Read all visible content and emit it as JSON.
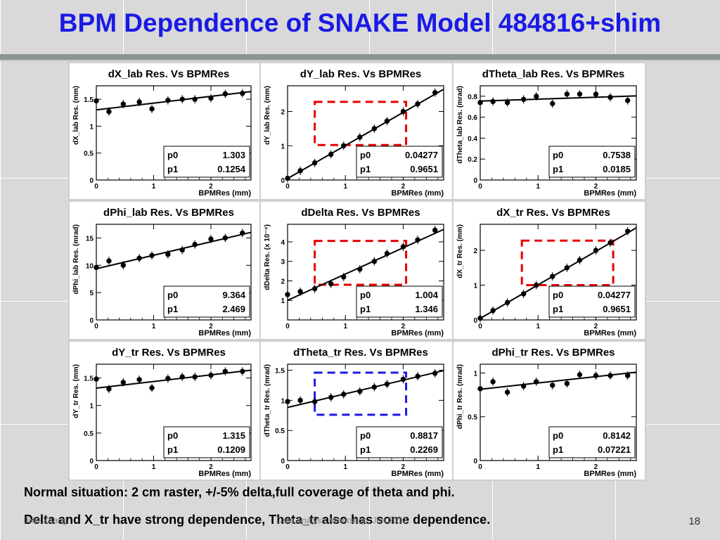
{
  "slide": {
    "title": "BPM Dependence of SNAKE Model 484816+shim",
    "caption": [
      "Normal situation: 2 cm raster, +/-5% delta,full coverage of theta and phi.",
      "Delta and X_tr have strong dependence, Theta_tr also has some dependence."
    ],
    "footer_left": "Jixie Zhang",
    "footer_center": "Data Analysis Workshop, Jan 2012",
    "page_number": "18"
  },
  "colors": {
    "title": "#1a1ae6",
    "red_box": "#e60000",
    "blue_box": "#1a1ae6",
    "fit_line": "#000000",
    "markers": "#000000"
  },
  "chart_data": [
    {
      "type": "scatter",
      "title": "dX_lab Res. Vs BPMRes",
      "xlabel": "BPMRes (mm)",
      "ylabel": "dX_lab Res. (mm)",
      "xlim": [
        0,
        2.7
      ],
      "ylim": [
        0,
        1.75
      ],
      "xticks": [
        0,
        1,
        2
      ],
      "yticks": [
        0,
        0.5,
        1,
        1.5
      ],
      "ytick_labels": [
        "0",
        "0.5",
        "1",
        "1.5"
      ],
      "x": [
        0.0,
        0.22,
        0.47,
        0.75,
        0.97,
        1.25,
        1.5,
        1.72,
        2.0,
        2.25,
        2.55
      ],
      "y": [
        1.47,
        1.27,
        1.41,
        1.45,
        1.32,
        1.48,
        1.5,
        1.5,
        1.52,
        1.6,
        1.61
      ],
      "fit": {
        "p0": 1.303,
        "p1": 0.1254
      },
      "fit_labels": {
        "p0_name": "p0",
        "p0_value": "1.303",
        "p1_name": "p1",
        "p1_value": "0.1254"
      },
      "highlight_box": null
    },
    {
      "type": "scatter",
      "title": "dY_lab Res. Vs BPMRes",
      "xlabel": "BPMRes (mm)",
      "ylabel": "dY_lab Res. (mm)",
      "xlim": [
        0,
        2.7
      ],
      "ylim": [
        0,
        2.75
      ],
      "xticks": [
        0,
        1,
        2
      ],
      "yticks": [
        0,
        1,
        2
      ],
      "ytick_labels": [
        "0",
        "1",
        "2"
      ],
      "x": [
        0.0,
        0.22,
        0.47,
        0.75,
        0.97,
        1.25,
        1.5,
        1.72,
        2.0,
        2.25,
        2.55
      ],
      "y": [
        0.05,
        0.27,
        0.5,
        0.75,
        1.0,
        1.25,
        1.5,
        1.72,
        2.0,
        2.22,
        2.55
      ],
      "fit": {
        "p0": 0.04277,
        "p1": 0.9651
      },
      "fit_labels": {
        "p0_name": "p0",
        "p0_value": "0.04277",
        "p1_name": "p1",
        "p1_value": "0.9651"
      },
      "highlight_box": {
        "color": "red",
        "x": [
          0.47,
          2.05
        ],
        "y": [
          1.02,
          2.28
        ]
      }
    },
    {
      "type": "scatter",
      "title": "dTheta_lab Res. Vs BPMRes",
      "xlabel": "BPMRes (mm)",
      "ylabel": "dTheta_lab Res. (mrad)",
      "xlim": [
        0,
        2.7
      ],
      "ylim": [
        0,
        0.9
      ],
      "xticks": [
        0,
        1,
        2
      ],
      "yticks": [
        0,
        0.2,
        0.4,
        0.6,
        0.8
      ],
      "ytick_labels": [
        "0",
        "0.2",
        "0.4",
        "0.6",
        "0.8"
      ],
      "x": [
        0.0,
        0.22,
        0.47,
        0.75,
        0.97,
        1.25,
        1.5,
        1.72,
        2.0,
        2.25,
        2.55
      ],
      "y": [
        0.74,
        0.75,
        0.74,
        0.77,
        0.8,
        0.73,
        0.82,
        0.82,
        0.82,
        0.79,
        0.76
      ],
      "fit": {
        "p0": 0.7538,
        "p1": 0.0185
      },
      "fit_labels": {
        "p0_name": "p0",
        "p0_value": "0.7538",
        "p1_name": "p1",
        "p1_value": "0.0185"
      },
      "highlight_box": null
    },
    {
      "type": "scatter",
      "title": "dPhi_lab Res. Vs BPMRes",
      "xlabel": "BPMRes (mm)",
      "ylabel": "dPhi_lab Res. (mrad)",
      "xlim": [
        0,
        2.7
      ],
      "ylim": [
        0,
        17.5
      ],
      "xticks": [
        0,
        1,
        2
      ],
      "yticks": [
        0,
        5,
        10,
        15
      ],
      "ytick_labels": [
        "0",
        "5",
        "10",
        "15"
      ],
      "x": [
        0.0,
        0.22,
        0.47,
        0.75,
        0.97,
        1.25,
        1.5,
        1.72,
        2.0,
        2.25,
        2.55
      ],
      "y": [
        9.6,
        10.8,
        10.0,
        11.3,
        11.8,
        12.0,
        12.8,
        13.8,
        14.8,
        15.0,
        15.9
      ],
      "fit": {
        "p0": 9.364,
        "p1": 2.469
      },
      "fit_labels": {
        "p0_name": "p0",
        "p0_value": "9.364",
        "p1_name": "p1",
        "p1_value": "2.469"
      },
      "highlight_box": null
    },
    {
      "type": "scatter",
      "title": "dDelta Res. Vs BPMRes",
      "xlabel": "BPMRes (mm)",
      "ylabel": "dDelta Res. (x 10⁻⁴)",
      "xlim": [
        0,
        2.7
      ],
      "ylim": [
        0,
        4.9
      ],
      "xticks": [
        0,
        1,
        2
      ],
      "yticks": [
        1,
        2,
        3,
        4
      ],
      "ytick_labels": [
        "1",
        "2",
        "3",
        "4"
      ],
      "x": [
        0.0,
        0.22,
        0.47,
        0.75,
        0.97,
        1.25,
        1.5,
        1.72,
        2.0,
        2.25,
        2.55
      ],
      "y": [
        1.3,
        1.45,
        1.6,
        1.85,
        2.2,
        2.6,
        3.0,
        3.4,
        3.75,
        4.1,
        4.6
      ],
      "fit": {
        "p0": 1.004,
        "p1": 1.346
      },
      "fit_labels": {
        "p0_name": "p0",
        "p0_value": "1.004",
        "p1_name": "p1",
        "p1_value": "1.346"
      },
      "highlight_box": {
        "color": "red",
        "x": [
          0.47,
          2.05
        ],
        "y": [
          1.8,
          4.05
        ]
      }
    },
    {
      "type": "scatter",
      "title": "dX_tr Res. Vs BPMRes",
      "xlabel": "BPMRes (mm)",
      "ylabel": "dX_tr Res. (mm)",
      "xlim": [
        0,
        2.7
      ],
      "ylim": [
        0,
        2.75
      ],
      "xticks": [
        0,
        1,
        2
      ],
      "yticks": [
        0,
        1,
        2
      ],
      "ytick_labels": [
        "0",
        "1",
        "2"
      ],
      "x": [
        0.0,
        0.22,
        0.47,
        0.75,
        0.97,
        1.25,
        1.5,
        1.72,
        2.0,
        2.25,
        2.55
      ],
      "y": [
        0.05,
        0.27,
        0.5,
        0.75,
        1.0,
        1.25,
        1.5,
        1.72,
        2.0,
        2.22,
        2.55
      ],
      "fit": {
        "p0": 0.04277,
        "p1": 0.9651
      },
      "fit_labels": {
        "p0_name": "p0",
        "p0_value": "0.04277",
        "p1_name": "p1",
        "p1_value": "0.9651"
      },
      "highlight_box": {
        "color": "red",
        "x": [
          0.72,
          2.3
        ],
        "y": [
          1.0,
          2.28
        ]
      }
    },
    {
      "type": "scatter",
      "title": "dY_tr Res. Vs BPMRes",
      "xlabel": "BPMRes (mm)",
      "ylabel": "dY_tr Res. (mm)",
      "xlim": [
        0,
        2.7
      ],
      "ylim": [
        0,
        1.75
      ],
      "xticks": [
        0,
        1,
        2
      ],
      "yticks": [
        0,
        0.5,
        1,
        1.5
      ],
      "ytick_labels": [
        "0",
        "0.5",
        "1",
        "1.5"
      ],
      "x": [
        0.0,
        0.22,
        0.47,
        0.75,
        0.97,
        1.25,
        1.5,
        1.72,
        2.0,
        2.25,
        2.55
      ],
      "y": [
        1.48,
        1.3,
        1.42,
        1.47,
        1.32,
        1.49,
        1.52,
        1.52,
        1.55,
        1.62,
        1.62
      ],
      "fit": {
        "p0": 1.315,
        "p1": 0.1209
      },
      "fit_labels": {
        "p0_name": "p0",
        "p0_value": "1.315",
        "p1_name": "p1",
        "p1_value": "0.1209"
      },
      "highlight_box": null
    },
    {
      "type": "scatter",
      "title": "dTheta_tr Res. Vs BPMRes",
      "xlabel": "BPMRes (mm)",
      "ylabel": "dTheta_tr Res. (mrad)",
      "xlim": [
        0,
        2.7
      ],
      "ylim": [
        0,
        1.6
      ],
      "xticks": [
        0,
        1,
        2
      ],
      "yticks": [
        0,
        0.5,
        1,
        1.5
      ],
      "ytick_labels": [
        "0",
        "0.5",
        "1",
        "1.5"
      ],
      "x": [
        0.0,
        0.22,
        0.47,
        0.75,
        0.97,
        1.25,
        1.5,
        1.72,
        2.0,
        2.25,
        2.55
      ],
      "y": [
        0.98,
        1.0,
        0.98,
        1.05,
        1.1,
        1.15,
        1.22,
        1.27,
        1.35,
        1.4,
        1.45
      ],
      "fit": {
        "p0": 0.8817,
        "p1": 0.2269
      },
      "fit_labels": {
        "p0_name": "p0",
        "p0_value": "0.8817",
        "p1_name": "p1",
        "p1_value": "0.2269"
      },
      "highlight_box": {
        "color": "blue",
        "x": [
          0.47,
          2.05
        ],
        "y": [
          0.76,
          1.46
        ]
      }
    },
    {
      "type": "scatter",
      "title": "dPhi_tr Res. Vs BPMRes",
      "xlabel": "BPMRes (mm)",
      "ylabel": "dPhi_tr Res. (mrad)",
      "xlim": [
        0,
        2.7
      ],
      "ylim": [
        0,
        1.1
      ],
      "xticks": [
        0,
        1,
        2
      ],
      "yticks": [
        0,
        0.5,
        1
      ],
      "ytick_labels": [
        "0",
        "0.5",
        "1"
      ],
      "x": [
        0.0,
        0.22,
        0.47,
        0.75,
        0.97,
        1.25,
        1.5,
        1.72,
        2.0,
        2.25,
        2.55
      ],
      "y": [
        0.82,
        0.9,
        0.78,
        0.85,
        0.9,
        0.86,
        0.88,
        0.98,
        0.97,
        0.97,
        0.97
      ],
      "fit": {
        "p0": 0.8142,
        "p1": 0.07221
      },
      "fit_labels": {
        "p0_name": "p0",
        "p0_value": "0.8142",
        "p1_name": "p1",
        "p1_value": "0.07221"
      },
      "highlight_box": null
    }
  ]
}
